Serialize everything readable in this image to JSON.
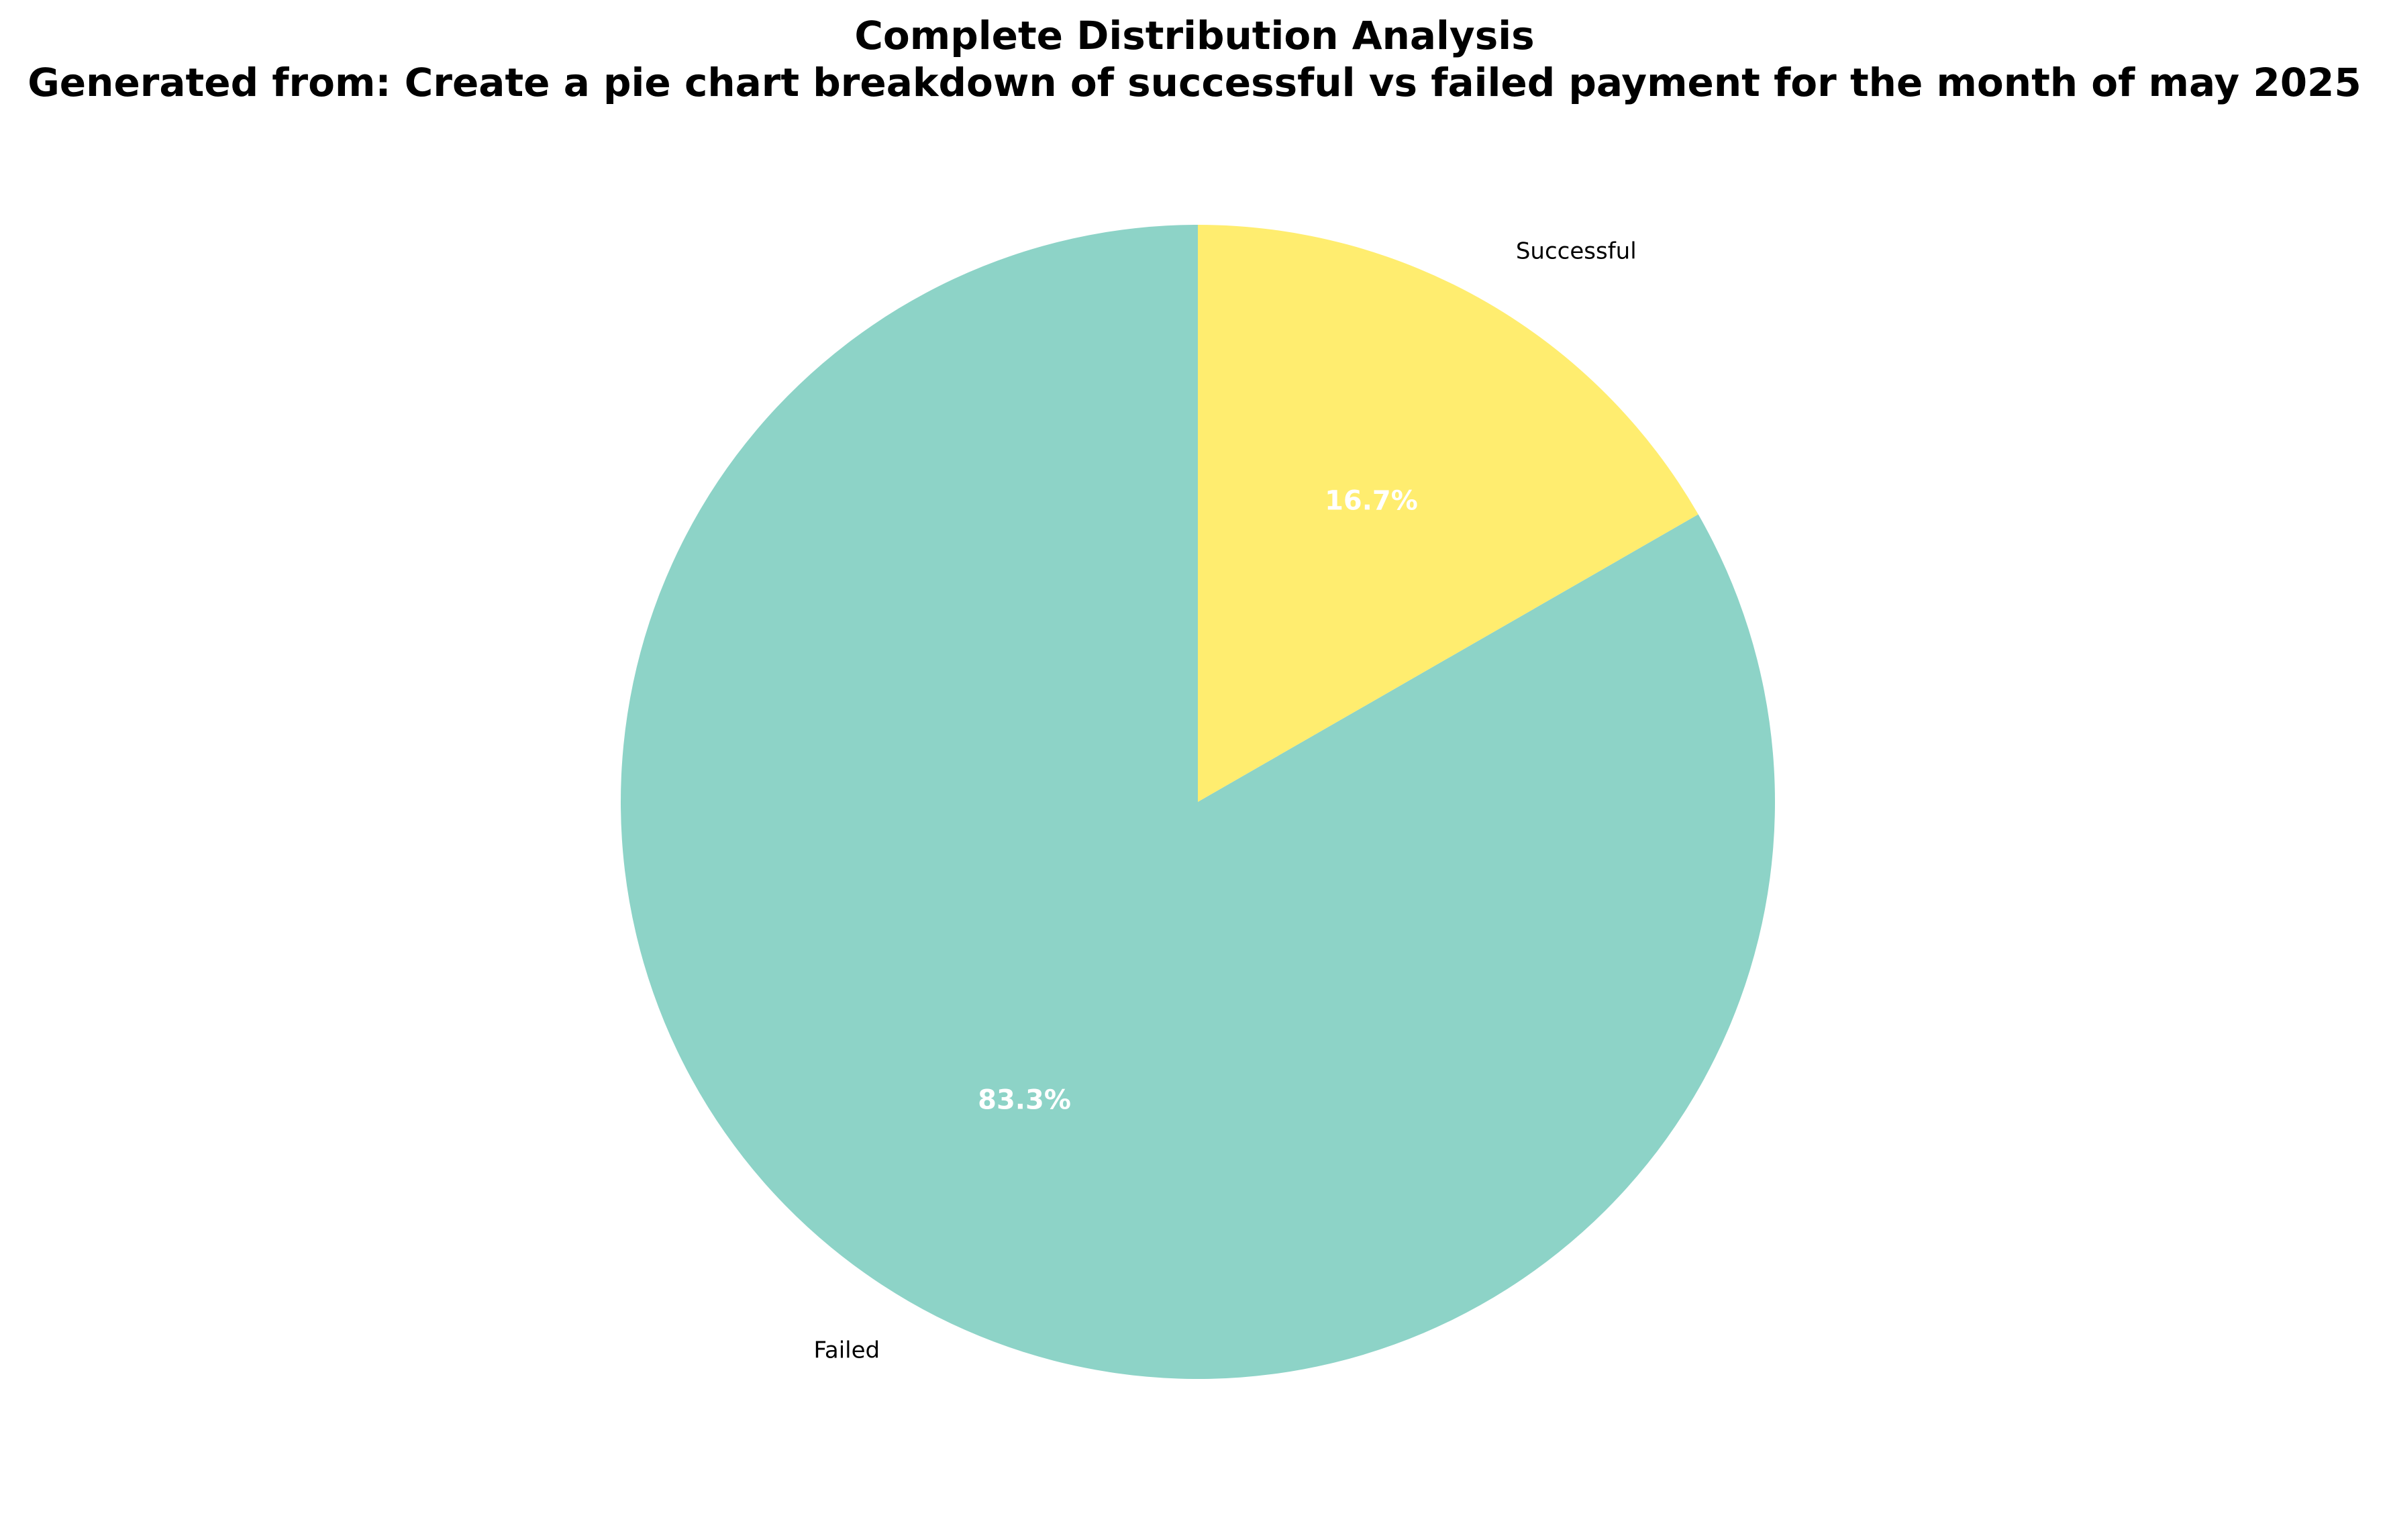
{
  "chart_data": {
    "type": "pie",
    "title": "Complete Distribution Analysis",
    "subtitle": "Generated from: Create a pie chart breakdown of successful vs failed payment for the month of may 2025",
    "start_angle_deg": 90,
    "direction": "counterclockwise",
    "slices": [
      {
        "label": "Failed",
        "value": 83.3,
        "pct_label": "83.3%",
        "color": "#8dd3c7"
      },
      {
        "label": "Successful",
        "value": 16.7,
        "pct_label": "16.7%",
        "color": "#ffed6f"
      }
    ]
  }
}
